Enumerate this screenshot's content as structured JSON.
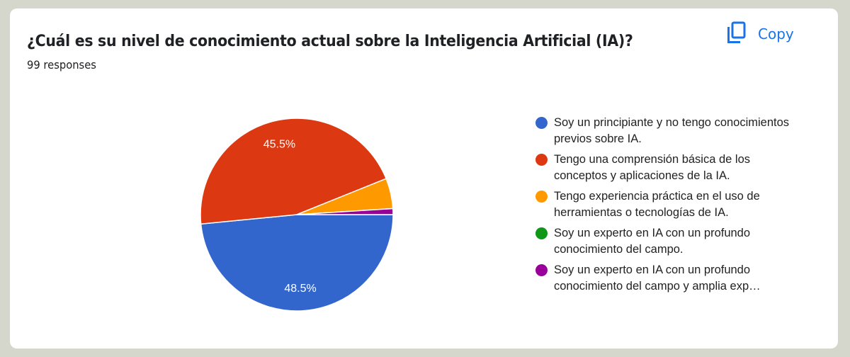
{
  "header": {
    "title": "¿Cuál es su nivel de conocimiento actual sobre la Inteligencia Artificial (IA)?",
    "response_count": "99 responses",
    "copy_label": "Copy",
    "copy_icon": "copy-icon",
    "accent_color": "#1a73e8"
  },
  "legend": [
    {
      "label": "Soy un principiante y no tengo conocimientos previos sobre IA.",
      "color": "#3366cc"
    },
    {
      "label": "Tengo una comprensión básica de los conceptos y aplicaciones de la IA.",
      "color": "#dc3912"
    },
    {
      "label": "Tengo experiencia práctica en el uso de herramientas o tecnologías de IA.",
      "color": "#ff9900"
    },
    {
      "label": "Soy un experto en IA con un profundo conocimiento del campo.",
      "color": "#109618"
    },
    {
      "label": "Soy un experto en IA con un profundo conocimiento del campo y amplia exp…",
      "color": "#990099"
    }
  ],
  "chart_data": {
    "type": "pie",
    "title": "¿Cuál es su nivel de conocimiento actual sobre la Inteligencia Artificial (IA)?",
    "subtitle": "99 responses",
    "categories": [
      "Soy un principiante y no tengo conocimientos previos sobre IA.",
      "Tengo una comprensión básica de los conceptos y aplicaciones de la IA.",
      "Tengo experiencia práctica en el uso de herramientas o tecnologías de IA.",
      "Soy un experto en IA con un profundo conocimiento del campo.",
      "Soy un experto en IA con un profundo conocimiento del campo y amplia exp…"
    ],
    "values": [
      48.5,
      45.5,
      5.1,
      0.0,
      1.0
    ],
    "counts": [
      48,
      45,
      5,
      0,
      1
    ],
    "data_labels": [
      "48.5%",
      "45.5%",
      "",
      "",
      ""
    ],
    "colors": [
      "#3366cc",
      "#dc3912",
      "#ff9900",
      "#109618",
      "#990099"
    ],
    "legend_position": "right",
    "start_angle": "3 o'clock, clockwise"
  }
}
